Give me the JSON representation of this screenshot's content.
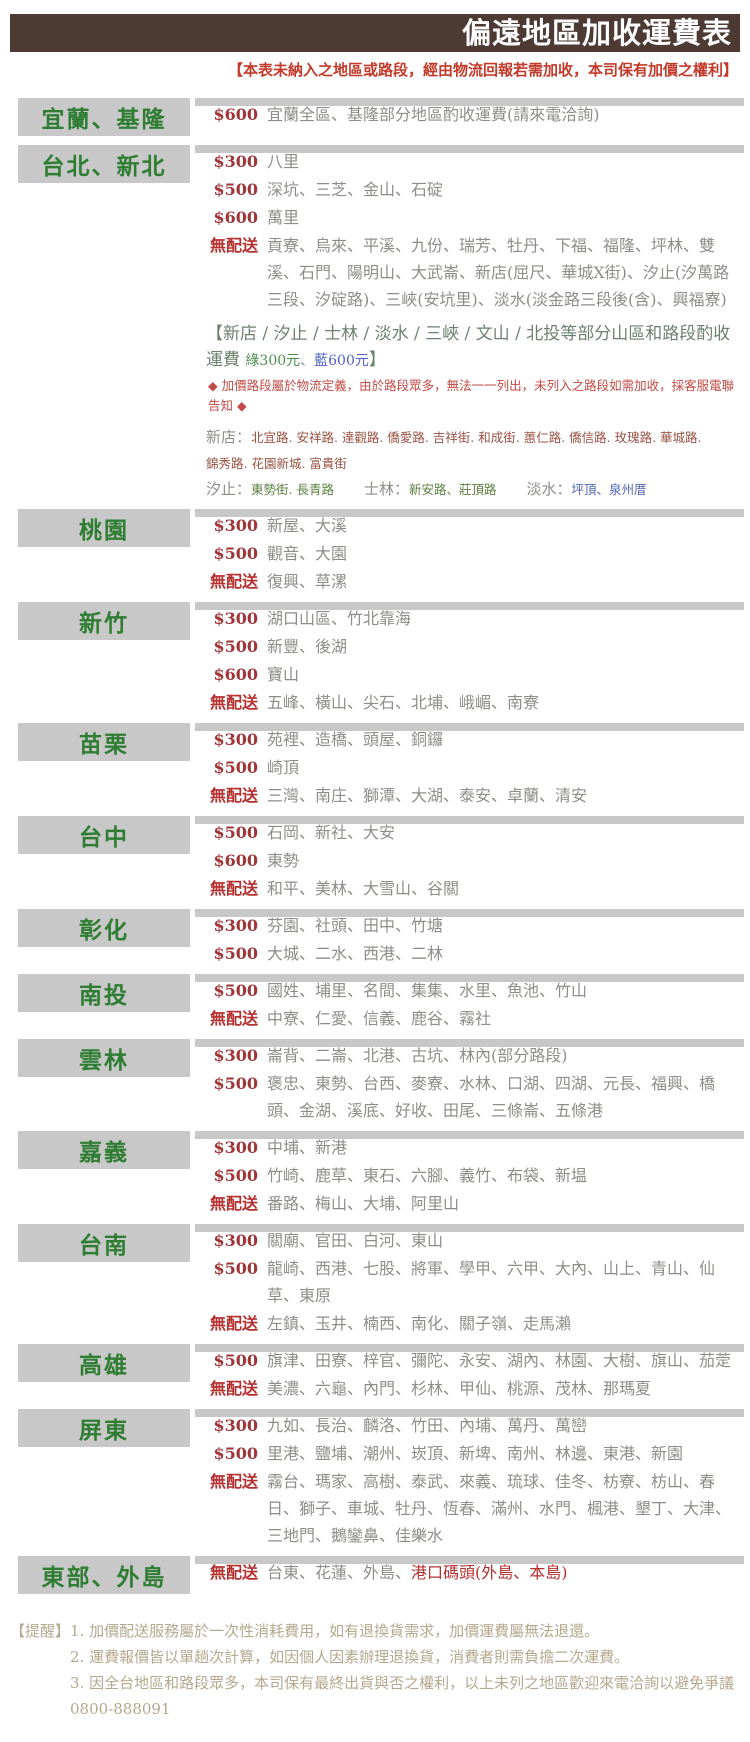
{
  "header": {
    "title": "偏遠地區加收運費表",
    "subtitle": "【本表未納入之地區或路段，經由物流回報若需加收，本司保有加價之權利】"
  },
  "colors": {
    "header_bg": "#4c3a33",
    "subtitle_red": "#c43a2a",
    "region_green": "#2e7d32",
    "strip_gray": "#c8c8c8",
    "fee_red": "#a03538",
    "noship_red": "#b5302f",
    "text_gray": "#8d8d8a",
    "note_green": "#6b826d",
    "warning_red": "#c24a44",
    "footer_tan": "#b5a88f"
  },
  "sections": [
    {
      "region": "宜蘭、基隆",
      "rows": [
        {
          "fee": "$600",
          "areas": "宜蘭全區、基隆部分地區酌收運費(請來電洽詢)"
        }
      ]
    },
    {
      "region": "台北、新北",
      "rows": [
        {
          "fee": "$300",
          "areas": "八里"
        },
        {
          "fee": "$500",
          "areas": "深坑、三芝、金山、石碇"
        },
        {
          "fee": "$600",
          "areas": "萬里"
        },
        {
          "fee": "無配送",
          "areas": "貢寮、烏來、平溪、九份、瑞芳、牡丹、下福、福隆、坪林、雙溪、石門、陽明山、大武崙、新店(屈尺、華城X街)、汐止(汐萬路三段、汐碇路)、三峽(安坑里)、淡水(淡金路三段後(含)、興福寮)"
        }
      ],
      "note": {
        "headline": "【新店 / 汐止 / 士林 / 淡水 / 三峽 / 文山 / 北投等部分山區和路段酌收運費 ",
        "fee_tags": [
          {
            "text": "綠300元",
            "color": "#4c8f4c"
          },
          {
            "text": "、",
            "color": "#8d8d8a"
          },
          {
            "text": "藍600元",
            "color": "#4f63c4"
          }
        ],
        "headline_close": "】",
        "warning": "◆ 加價路段屬於物流定義，由於路段眾多，無法一一列出，未列入之路段如需加收，採客服電聯告知 ◆",
        "road_notes": [
          {
            "label": "新店：",
            "roads": "北宜路. 安祥路. 達觀路. 僑愛路. 吉祥街. 和成街. 蕙仁路. 僑信路. 玫瑰路. 華城路. 錦秀路. 花園新城. 富貴街",
            "color": "#9a5243"
          },
          {
            "label": "汐止：",
            "roads": "東勢街. 長青路",
            "color": "#5c7f42"
          },
          {
            "label": "士林：",
            "roads": "新安路、莊頂路",
            "color": "#5c7f42"
          },
          {
            "label": "淡水：",
            "roads": "坪頂、泉州厝",
            "color": "#5064b4"
          }
        ]
      }
    },
    {
      "region": "桃園",
      "rows": [
        {
          "fee": "$300",
          "areas": "新屋、大溪"
        },
        {
          "fee": "$500",
          "areas": "觀音、大園"
        },
        {
          "fee": "無配送",
          "areas": "復興、草漯"
        }
      ]
    },
    {
      "region": "新竹",
      "rows": [
        {
          "fee": "$300",
          "areas": "湖口山區、竹北靠海"
        },
        {
          "fee": "$500",
          "areas": "新豐、後湖"
        },
        {
          "fee": "$600",
          "areas": "寶山"
        },
        {
          "fee": "無配送",
          "areas": "五峰、橫山、尖石、北埔、峨嵋、南寮"
        }
      ]
    },
    {
      "region": "苗栗",
      "rows": [
        {
          "fee": "$300",
          "areas": "苑裡、造橋、頭屋、銅鑼"
        },
        {
          "fee": "$500",
          "areas": "崎頂"
        },
        {
          "fee": "無配送",
          "areas": "三灣、南庄、獅潭、大湖、泰安、卓蘭、清安"
        }
      ]
    },
    {
      "region": "台中",
      "rows": [
        {
          "fee": "$500",
          "areas": "石岡、新社、大安"
        },
        {
          "fee": "$600",
          "areas": "東勢"
        },
        {
          "fee": "無配送",
          "areas": "和平、美林、大雪山、谷關"
        }
      ]
    },
    {
      "region": "彰化",
      "rows": [
        {
          "fee": "$300",
          "areas": "芬園、社頭、田中、竹塘"
        },
        {
          "fee": "$500",
          "areas": "大城、二水、西港、二林"
        }
      ]
    },
    {
      "region": "南投",
      "rows": [
        {
          "fee": "$500",
          "areas": "國姓、埔里、名間、集集、水里、魚池、竹山"
        },
        {
          "fee": "無配送",
          "areas": "中寮、仁愛、信義、鹿谷、霧社"
        }
      ]
    },
    {
      "region": "雲林",
      "rows": [
        {
          "fee": "$300",
          "areas": "崙背、二崙、北港、古坑、林內(部分路段)"
        },
        {
          "fee": "$500",
          "areas": "褒忠、東勢、台西、麥寮、水林、口湖、四湖、元長、福興、橋頭、金湖、溪底、好收、田尾、三條崙、五條港"
        }
      ]
    },
    {
      "region": "嘉義",
      "rows": [
        {
          "fee": "$300",
          "areas": "中埔、新港"
        },
        {
          "fee": "$500",
          "areas": "竹崎、鹿草、東石、六腳、義竹、布袋、新塭"
        },
        {
          "fee": "無配送",
          "areas": "番路、梅山、大埔、阿里山"
        }
      ]
    },
    {
      "region": "台南",
      "rows": [
        {
          "fee": "$300",
          "areas": "關廟、官田、白河、東山"
        },
        {
          "fee": "$500",
          "areas": "龍崎、西港、七股、將軍、學甲、六甲、大內、山上、青山、仙草、東原"
        },
        {
          "fee": "無配送",
          "areas": "左鎮、玉井、楠西、南化、關子嶺、走馬瀨"
        }
      ]
    },
    {
      "region": "高雄",
      "rows": [
        {
          "fee": "$500",
          "areas": "旗津、田寮、梓官、彌陀、永安、湖內、林園、大樹、旗山、茄萣"
        },
        {
          "fee": "無配送",
          "areas": "美濃、六龜、內門、杉林、甲仙、桃源、茂林、那瑪夏"
        }
      ]
    },
    {
      "region": "屏東",
      "rows": [
        {
          "fee": "$300",
          "areas": "九如、長治、麟洛、竹田、內埔、萬丹、萬巒"
        },
        {
          "fee": "$500",
          "areas": "里港、鹽埔、潮州、崁頂、新埤、南州、林邊、東港、新園"
        },
        {
          "fee": "無配送",
          "areas": "霧台、瑪家、高樹、泰武、來義、琉球、佳冬、枋寮、枋山、春日、獅子、車城、牡丹、恆春、滿州、水門、楓港、墾丁、大津、三地門、鵝鑾鼻、佳樂水"
        }
      ]
    },
    {
      "region": "東部、外島",
      "rows": [
        {
          "fee": "無配送",
          "areas": "台東、花蓮、外島、",
          "areas_red": "港口碼頭(外島、本島)"
        }
      ]
    }
  ],
  "footer": {
    "label": "【提醒】",
    "lines": [
      "1. 加價配送服務屬於一次性消耗費用，如有退換貨需求，加價運費屬無法退還。",
      "2. 運費報價皆以單趟次計算，如因個人因素辦理退換貨，消費者則需負擔二次運費。",
      "3. 因全台地區和路段眾多，本司保有最終出貨與否之權利，以上未列之地區歡迎來電洽詢以避免爭議0800-888091"
    ]
  }
}
